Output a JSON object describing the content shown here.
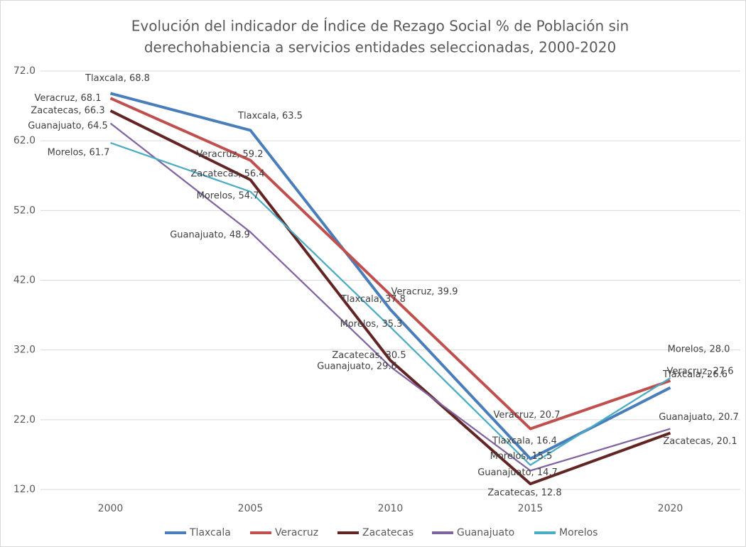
{
  "chart_data": {
    "type": "line",
    "title": [
      "Evolución del indicador de Índice de Rezago Social % de Población sin",
      "derechohabiencia a servicios entidades seleccionadas, 2000-2020"
    ],
    "categories": [
      "2000",
      "2005",
      "2010",
      "2015",
      "2020"
    ],
    "ylim": [
      12,
      72
    ],
    "yticks": [
      {
        "value": 12,
        "label": "12.0"
      },
      {
        "value": 22,
        "label": "22.0"
      },
      {
        "value": 32,
        "label": "32.0"
      },
      {
        "value": 42,
        "label": "42.0"
      },
      {
        "value": 52,
        "label": "52.0"
      },
      {
        "value": 62,
        "label": "62.0"
      },
      {
        "value": 72,
        "label": "72.0"
      }
    ],
    "grid": true,
    "legend": "bottom",
    "series": [
      {
        "name": "Tlaxcala",
        "color": "#4a7ebb",
        "values": [
          68.8,
          63.5,
          37.8,
          16.4,
          26.6
        ],
        "value_labels": [
          "Tlaxcala, 68.8",
          "Tlaxcala, 63.5",
          "Tlaxcala, 37.8",
          "Tlaxcala, 16.4",
          "Tlaxcala, 26.6"
        ]
      },
      {
        "name": "Veracruz",
        "color": "#c0504d",
        "values": [
          68.1,
          59.2,
          39.9,
          20.7,
          27.6
        ],
        "value_labels": [
          "Veracruz, 68.1",
          "Veracruz, 59.2",
          "Veracruz, 39.9",
          "Veracruz, 20.7",
          "Veracruz, 27.6"
        ]
      },
      {
        "name": "Zacatecas",
        "color": "#632523",
        "values": [
          66.3,
          56.4,
          30.5,
          12.8,
          20.1
        ],
        "value_labels": [
          "Zacatecas, 66.3",
          "Zacatecas, 56.4",
          "Zacatecas, 30.5",
          "Zacatecas, 12.8",
          "Zacatecas, 20.1"
        ]
      },
      {
        "name": "Guanajuato",
        "color": "#8064a2",
        "values": [
          64.5,
          48.9,
          29.6,
          14.7,
          20.7
        ],
        "value_labels": [
          "Guanajuato, 64.5",
          "Guanajuato, 48.9",
          "Guanajuato, 29.6",
          "Guanajuato, 14.7",
          "Guanajuato, 20.7"
        ]
      },
      {
        "name": "Morelos",
        "color": "#4bacc6",
        "values": [
          61.7,
          54.7,
          35.3,
          15.5,
          28.0
        ],
        "value_labels": [
          "Morelos, 61.7",
          "Morelos, 54.7",
          "Morelos, 35.3",
          "Morelos, 15.5",
          "Morelos, 28.0"
        ]
      }
    ]
  }
}
